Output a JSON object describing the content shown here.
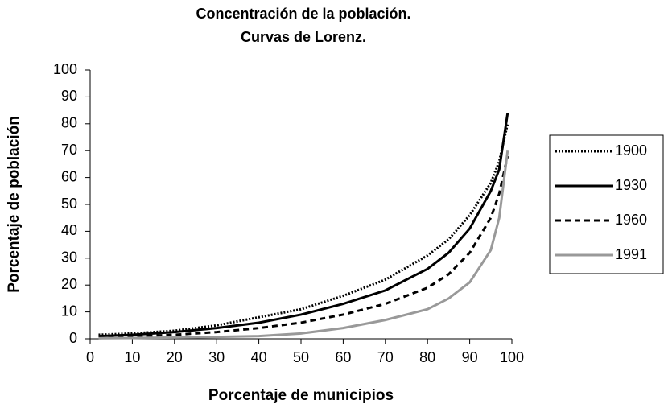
{
  "chart_data": {
    "type": "line",
    "title": [
      "Concentración de la población.",
      "Curvas de Lorenz."
    ],
    "x_label": "Porcentaje de municipios",
    "y_label": "Porcentaje de población",
    "x": [
      2,
      10,
      20,
      30,
      40,
      50,
      60,
      70,
      80,
      85,
      90,
      95,
      97,
      99
    ],
    "series": [
      {
        "name": "1900",
        "color": "#000000",
        "line_style": "dotted",
        "values": [
          1.5,
          2,
          3,
          5,
          8,
          11,
          16,
          22,
          31,
          37,
          46,
          58,
          66,
          80
        ]
      },
      {
        "name": "1930",
        "color": "#000000",
        "line_style": "solid",
        "values": [
          1,
          1.5,
          2.5,
          4,
          6,
          9,
          13,
          18,
          26,
          32,
          41,
          55,
          63,
          84
        ]
      },
      {
        "name": "1960",
        "color": "#000000",
        "line_style": "dashed",
        "values": [
          0.5,
          0.8,
          1.5,
          2.5,
          4,
          6,
          9,
          13,
          19,
          24,
          32,
          45,
          54,
          68
        ]
      },
      {
        "name": "1991",
        "color": "#999999",
        "line_style": "solid",
        "values": [
          0.2,
          0.3,
          0.5,
          0.7,
          1,
          2,
          4,
          7,
          11,
          15,
          21,
          33,
          45,
          70
        ]
      }
    ],
    "xlim": [
      0,
      100
    ],
    "xticks": [
      0,
      10,
      20,
      30,
      40,
      50,
      60,
      70,
      80,
      90,
      100
    ],
    "ylim": [
      0,
      100
    ],
    "yticks": [
      0,
      10,
      20,
      30,
      40,
      50,
      60,
      70,
      80,
      90,
      100
    ],
    "grid": false,
    "legend": "right"
  }
}
